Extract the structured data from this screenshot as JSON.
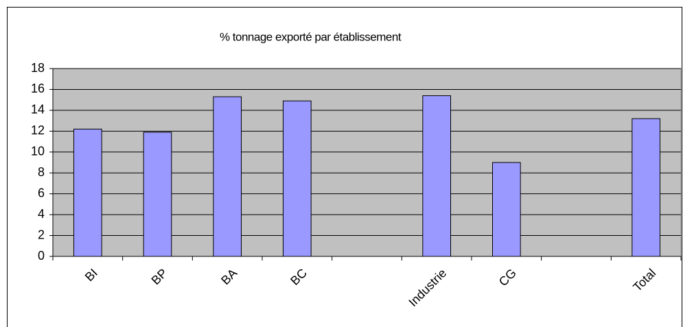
{
  "chart_data": {
    "type": "bar",
    "title": "% tonnage exporté par établissement",
    "categories": [
      "BI",
      "BP",
      "BA",
      "BC",
      null,
      "Industrie",
      "CG",
      null,
      "Total"
    ],
    "values": [
      12.2,
      11.9,
      15.3,
      14.9,
      null,
      15.4,
      9,
      null,
      13.2
    ],
    "color": "#9999ff",
    "ylim": [
      0,
      18
    ],
    "yticks": [
      0,
      2,
      4,
      6,
      8,
      10,
      12,
      14,
      16,
      18
    ],
    "grid": true
  }
}
